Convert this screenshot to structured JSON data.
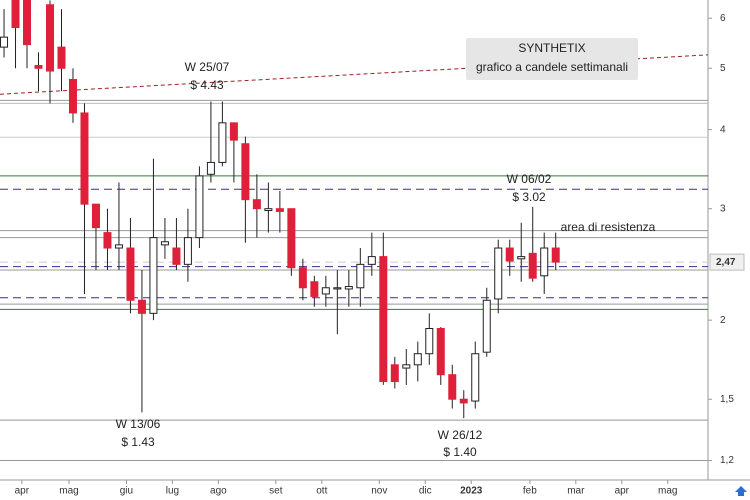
{
  "chart_data": {
    "type": "candlestick",
    "title": "SYNTHETIX",
    "subtitle": "grafico a candele settimanali",
    "log_scale": true,
    "up_color": "#ffffff",
    "down_color": "#e0203a",
    "x": [
      0.35,
      1.35,
      2.35,
      3.35,
      4.35,
      5.35,
      6.35,
      7.35,
      8.35,
      9.35,
      10.35,
      11.35,
      12.35,
      13.35,
      14.35,
      15.35,
      16.35,
      17.35,
      18.35,
      19.35,
      20.35,
      21.35,
      22.35,
      23.35,
      24.35,
      25.35,
      26.35,
      27.35,
      28.35,
      29.35,
      30.35,
      31.35,
      32.35,
      33.35,
      34.35,
      35.35,
      36.35,
      37.35,
      38.35,
      39.35,
      40.35,
      41.35,
      42.35,
      43.35,
      44.35,
      45.35,
      46.35,
      47.35,
      48.35
    ],
    "open": [
      5.4,
      6.5,
      6.4,
      5.05,
      6.3,
      5.4,
      4.8,
      4.25,
      3.05,
      2.75,
      2.6,
      2.6,
      2.15,
      2.05,
      2.63,
      2.6,
      2.45,
      2.7,
      3.4,
      3.55,
      4.1,
      3.8,
      3.1,
      2.98,
      3.0,
      3.0,
      2.42,
      2.3,
      2.2,
      2.24,
      2.24,
      2.25,
      2.45,
      2.52,
      1.7,
      1.68,
      1.7,
      1.77,
      1.94,
      1.64,
      1.5,
      1.49,
      1.78,
      2.16,
      2.6,
      2.5,
      2.55,
      2.35,
      2.6
    ],
    "high": [
      6.2,
      6.6,
      6.5,
      5.3,
      6.4,
      6.2,
      5.0,
      4.4,
      3.05,
      3.0,
      3.3,
      2.9,
      2.4,
      3.6,
      2.9,
      2.9,
      3.0,
      3.5,
      4.43,
      4.43,
      4.1,
      3.9,
      3.4,
      3.3,
      3.2,
      3.0,
      2.5,
      2.35,
      2.35,
      2.4,
      2.4,
      2.6,
      2.75,
      2.75,
      1.75,
      1.8,
      1.85,
      2.05,
      1.95,
      1.7,
      1.55,
      1.85,
      2.25,
      2.68,
      2.68,
      2.85,
      3.02,
      2.75,
      2.75
    ],
    "low": [
      5.2,
      5.0,
      5.0,
      4.6,
      4.4,
      4.6,
      4.1,
      2.2,
      2.4,
      2.4,
      2.4,
      2.05,
      1.43,
      2.0,
      2.5,
      2.4,
      2.3,
      2.6,
      3.3,
      3.5,
      3.3,
      2.65,
      2.7,
      2.75,
      2.75,
      2.35,
      2.15,
      2.1,
      2.1,
      1.9,
      2.1,
      2.1,
      2.35,
      1.58,
      1.56,
      1.58,
      1.6,
      1.7,
      1.58,
      1.45,
      1.4,
      1.45,
      1.75,
      2.05,
      2.35,
      2.3,
      2.3,
      2.2,
      2.4
    ],
    "close": [
      5.6,
      5.8,
      5.45,
      5.0,
      4.95,
      5.0,
      4.25,
      3.05,
      2.8,
      2.6,
      2.63,
      2.15,
      2.05,
      2.7,
      2.66,
      2.45,
      2.7,
      3.38,
      3.55,
      4.1,
      3.85,
      3.1,
      3.0,
      3.0,
      2.97,
      2.42,
      2.25,
      2.18,
      2.25,
      2.25,
      2.26,
      2.45,
      2.52,
      1.6,
      1.6,
      1.7,
      1.77,
      1.94,
      1.64,
      1.5,
      1.48,
      1.77,
      2.15,
      2.6,
      2.48,
      2.52,
      2.33,
      2.6,
      2.47
    ],
    "xlim": [
      0,
      61.6
    ],
    "xticks": [
      {
        "value": 1.9,
        "label": "apr"
      },
      {
        "value": 6.0,
        "label": "mag"
      },
      {
        "value": 11.0,
        "label": "giu"
      },
      {
        "value": 15.0,
        "label": "lug"
      },
      {
        "value": 19.0,
        "label": "ago"
      },
      {
        "value": 24.0,
        "label": "set"
      },
      {
        "value": 28.0,
        "label": "ott"
      },
      {
        "value": 33.0,
        "label": "nov"
      },
      {
        "value": 37.0,
        "label": "dic"
      },
      {
        "value": 41.0,
        "label": "2023"
      },
      {
        "value": 46.1,
        "label": "feb"
      },
      {
        "value": 50.1,
        "label": "mar"
      },
      {
        "value": 54.1,
        "label": "apr"
      },
      {
        "value": 58.1,
        "label": "mag"
      }
    ],
    "ylim": [
      1.118,
      6.41
    ],
    "yticks": [
      6,
      5,
      4,
      3,
      2,
      {
        "value": 1.5,
        "label": "1,5"
      },
      {
        "value": 1.2,
        "label": "1,2"
      }
    ],
    "last_price": {
      "value": 2.47,
      "label": "2,47"
    },
    "hlines": [
      {
        "value": 4.45,
        "color": "#999999"
      },
      {
        "value": 4.4,
        "color": "#bbbbbb"
      },
      {
        "value": 3.89,
        "color": "#cccccc"
      },
      {
        "value": 3.38,
        "color": "#2e7d32"
      },
      {
        "value": 3.22,
        "color": "#3b2a8f",
        "dashed": true
      },
      {
        "value": 2.77,
        "color": "#999999"
      },
      {
        "value": 2.7,
        "color": "#999999"
      },
      {
        "value": 2.47,
        "color": "#cccccc",
        "dashed": true
      },
      {
        "value": 2.43,
        "color": "#3b2a8f",
        "dashed": true
      },
      {
        "value": 2.4,
        "color": "#999999"
      },
      {
        "value": 2.17,
        "color": "#3b2a8f",
        "dashed": true
      },
      {
        "value": 2.12,
        "color": "#999999"
      },
      {
        "value": 2.08,
        "color": "#2e7d32"
      },
      {
        "value": 1.39,
        "color": "#999999"
      },
      {
        "value": 1.2,
        "color": "#999999"
      }
    ],
    "trend_line": {
      "x": [
        0,
        61.6
      ],
      "values": [
        4.55,
        5.25
      ],
      "color": "#a02020"
    },
    "annotations": [
      "W 25/07",
      "$ 4.43",
      "W 13/06",
      "$ 1.43",
      "W 26/12",
      "$ 1.40",
      "W 06/02",
      "$ 3.02",
      "area di resistenza"
    ]
  }
}
